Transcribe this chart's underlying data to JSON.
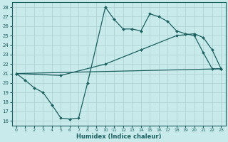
{
  "background_color": "#c8eaea",
  "grid_color": "#b0d4d4",
  "line_color": "#1a6060",
  "xlabel": "Humidex (Indice chaleur)",
  "xlim": [
    -0.5,
    23.5
  ],
  "ylim": [
    15.5,
    28.5
  ],
  "xticks": [
    0,
    1,
    2,
    3,
    4,
    5,
    6,
    7,
    8,
    9,
    10,
    11,
    12,
    13,
    14,
    15,
    16,
    17,
    18,
    19,
    20,
    21,
    22,
    23
  ],
  "yticks": [
    16,
    17,
    18,
    19,
    20,
    21,
    22,
    23,
    24,
    25,
    26,
    27,
    28
  ],
  "series": [
    {
      "x": [
        0,
        1,
        2,
        3,
        4,
        5,
        6,
        7,
        8,
        10,
        11,
        12,
        13,
        14,
        15,
        16,
        17,
        18,
        19,
        20,
        21,
        22,
        23
      ],
      "y": [
        21,
        20.3,
        19.5,
        19,
        17.7,
        16.3,
        16.2,
        16.3,
        20,
        28,
        26.7,
        25.7,
        25.7,
        25.5,
        27.3,
        27,
        26.5,
        25.5,
        25.2,
        25,
        23.2,
        21.5,
        21.5
      ],
      "marker": true,
      "markersize": 2.0
    },
    {
      "x": [
        0,
        23
      ],
      "y": [
        21,
        21.5
      ],
      "marker": true,
      "markersize": 2.0
    },
    {
      "x": [
        0,
        5,
        10,
        14,
        18,
        20,
        21,
        22,
        23
      ],
      "y": [
        21,
        20.8,
        22.0,
        23.5,
        25.0,
        25.2,
        24.8,
        23.5,
        21.5
      ],
      "marker": true,
      "markersize": 2.0
    }
  ]
}
